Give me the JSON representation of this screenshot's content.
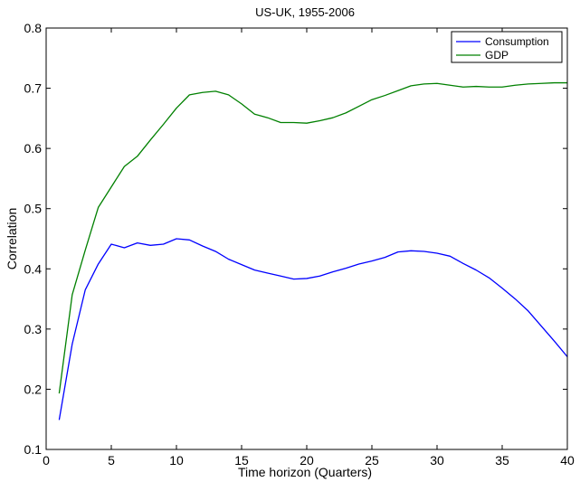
{
  "chart_data": {
    "type": "line",
    "title": "US-UK, 1955-2006",
    "xlabel": "Time horizon (Quarters)",
    "ylabel": "Correlation",
    "xlim": [
      0,
      40
    ],
    "ylim": [
      0.1,
      0.8
    ],
    "xticks": [
      0,
      5,
      10,
      15,
      20,
      25,
      30,
      35,
      40
    ],
    "yticks": [
      0.1,
      0.2,
      0.3,
      0.4,
      0.5,
      0.6,
      0.7,
      0.8
    ],
    "grid": false,
    "legend_position": "top-right",
    "x": [
      1,
      2,
      3,
      4,
      5,
      6,
      7,
      8,
      9,
      10,
      11,
      12,
      13,
      14,
      15,
      16,
      17,
      18,
      19,
      20,
      21,
      22,
      23,
      24,
      25,
      26,
      27,
      28,
      29,
      30,
      31,
      32,
      33,
      34,
      35,
      36,
      37,
      38,
      39,
      40
    ],
    "series": [
      {
        "name": "Consumption",
        "color": "#0000ff",
        "values": [
          0.149,
          0.275,
          0.365,
          0.408,
          0.441,
          0.435,
          0.443,
          0.439,
          0.441,
          0.45,
          0.448,
          0.438,
          0.429,
          0.416,
          0.407,
          0.398,
          0.393,
          0.388,
          0.383,
          0.384,
          0.388,
          0.395,
          0.401,
          0.408,
          0.413,
          0.419,
          0.428,
          0.43,
          0.429,
          0.426,
          0.421,
          0.409,
          0.398,
          0.385,
          0.368,
          0.35,
          0.33,
          0.305,
          0.28,
          0.254
        ]
      },
      {
        "name": "GDP",
        "color": "#008000",
        "values": [
          0.193,
          0.357,
          0.431,
          0.502,
          0.536,
          0.57,
          0.587,
          0.614,
          0.64,
          0.667,
          0.689,
          0.693,
          0.695,
          0.689,
          0.674,
          0.657,
          0.651,
          0.643,
          0.643,
          0.642,
          0.646,
          0.651,
          0.659,
          0.67,
          0.681,
          0.688,
          0.696,
          0.704,
          0.707,
          0.708,
          0.705,
          0.702,
          0.703,
          0.702,
          0.702,
          0.705,
          0.707,
          0.708,
          0.709,
          0.709
        ]
      }
    ]
  }
}
